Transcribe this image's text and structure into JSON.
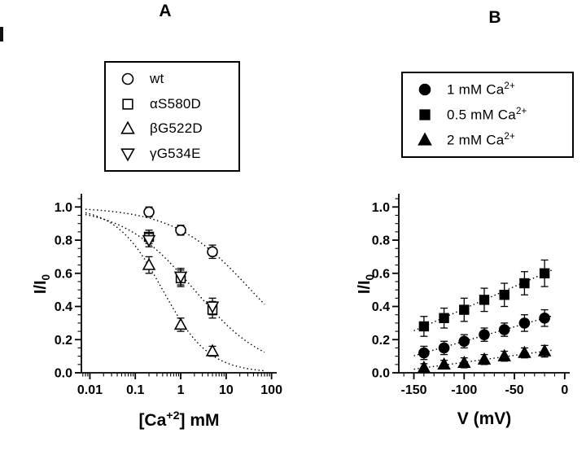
{
  "panel_a": {
    "label": "A",
    "legend": [
      {
        "marker": "circle-open",
        "label": "wt"
      },
      {
        "marker": "square-open",
        "label": "αS580D"
      },
      {
        "marker": "triangle-up-open",
        "label": "βG522D"
      },
      {
        "marker": "triangle-down-open",
        "label": "γG534E"
      }
    ],
    "ylabel": {
      "pre": "I/I",
      "sub": "0"
    },
    "xlabel": {
      "pre": "[Ca",
      "sup": "+2",
      "post": "] mM"
    }
  },
  "panel_b": {
    "label": "B",
    "legend": [
      {
        "marker": "circle-filled",
        "label": {
          "pre": "1 mM Ca",
          "sup": "2+"
        }
      },
      {
        "marker": "square-filled",
        "label": {
          "pre": "0.5 mM Ca",
          "sup": "2+"
        }
      },
      {
        "marker": "triangle-up-filled",
        "label": {
          "pre": "2 mM Ca",
          "sup": "2+"
        }
      }
    ],
    "ylabel": {
      "pre": "I/I",
      "sub": "0"
    },
    "xlabel": "V (mV)"
  },
  "chart_data": [
    {
      "type": "scatter",
      "panel": "A",
      "title": "",
      "xlabel": "[Ca+2] mM",
      "ylabel": "I/I0",
      "x_scale": "log",
      "xlim": [
        0.0065,
        130
      ],
      "ylim": [
        0,
        1.08
      ],
      "x_ticks": [
        0.01,
        0.1,
        1,
        10,
        100
      ],
      "x_tick_labels": [
        "0.01",
        "0.1",
        "1",
        "10",
        "100"
      ],
      "y_ticks": [
        0,
        0.2,
        0.4,
        0.6,
        0.8,
        1.0
      ],
      "grid": false,
      "legend_position": "upper-left-box",
      "series": [
        {
          "name": "wt",
          "marker": "circle-open",
          "x": [
            0.2,
            1,
            5
          ],
          "y": [
            0.97,
            0.86,
            0.73
          ],
          "yerr": [
            0.03,
            0.03,
            0.04
          ],
          "fit_hill": {
            "ic50": 35,
            "n": 0.51
          }
        },
        {
          "name": "aS580D",
          "marker": "square-open",
          "x": [
            0.2,
            1,
            5
          ],
          "y": [
            0.82,
            0.57,
            0.38
          ],
          "yerr": [
            0.04,
            0.05,
            0.05
          ],
          "fit_hill": {
            "ic50": 2.0,
            "n": 0.55
          }
        },
        {
          "name": "bG522D",
          "marker": "triangle-up-open",
          "x": [
            0.2,
            1,
            5
          ],
          "y": [
            0.65,
            0.29,
            0.13
          ],
          "yerr": [
            0.05,
            0.04,
            0.03
          ],
          "fit_hill": {
            "ic50": 0.4,
            "n": 0.85
          }
        },
        {
          "name": "gG534E",
          "marker": "triangle-down-open",
          "x": [
            0.2,
            1,
            5
          ],
          "y": [
            0.8,
            0.58,
            0.4
          ],
          "yerr": [
            0.04,
            0.05,
            0.05
          ],
          "fit_hill": null
        }
      ]
    },
    {
      "type": "scatter",
      "panel": "B",
      "title": "",
      "xlabel": "V (mV)",
      "ylabel": "I/I0",
      "x_scale": "linear",
      "xlim": [
        -165,
        5
      ],
      "ylim": [
        0,
        1.08
      ],
      "x_ticks": [
        -150,
        -100,
        -50,
        0
      ],
      "x_tick_labels": [
        "-150",
        "-100",
        "-50",
        "0"
      ],
      "y_ticks": [
        0,
        0.2,
        0.4,
        0.6,
        0.8,
        1.0
      ],
      "grid": false,
      "legend_position": "upper-right-box",
      "series": [
        {
          "name": "1 mM Ca2+",
          "marker": "circle-filled",
          "x": [
            -140,
            -120,
            -100,
            -80,
            -60,
            -40,
            -20
          ],
          "y": [
            0.12,
            0.15,
            0.19,
            0.23,
            0.26,
            0.3,
            0.33
          ],
          "yerr": [
            0.04,
            0.04,
            0.04,
            0.04,
            0.04,
            0.05,
            0.05
          ],
          "trend": "linear-dotted"
        },
        {
          "name": "0.5 mM Ca2+",
          "marker": "square-filled",
          "x": [
            -140,
            -120,
            -100,
            -80,
            -60,
            -40,
            -20
          ],
          "y": [
            0.28,
            0.33,
            0.38,
            0.44,
            0.47,
            0.54,
            0.6
          ],
          "yerr": [
            0.06,
            0.06,
            0.07,
            0.07,
            0.07,
            0.07,
            0.08
          ],
          "trend": "linear-dotted"
        },
        {
          "name": "2 mM Ca2+",
          "marker": "triangle-up-filled",
          "x": [
            -140,
            -120,
            -100,
            -80,
            -60,
            -40,
            -20
          ],
          "y": [
            0.03,
            0.05,
            0.06,
            0.08,
            0.1,
            0.12,
            0.13
          ],
          "yerr": [
            0.025,
            0.025,
            0.03,
            0.03,
            0.03,
            0.03,
            0.035
          ],
          "trend": "linear-dotted"
        }
      ]
    }
  ]
}
